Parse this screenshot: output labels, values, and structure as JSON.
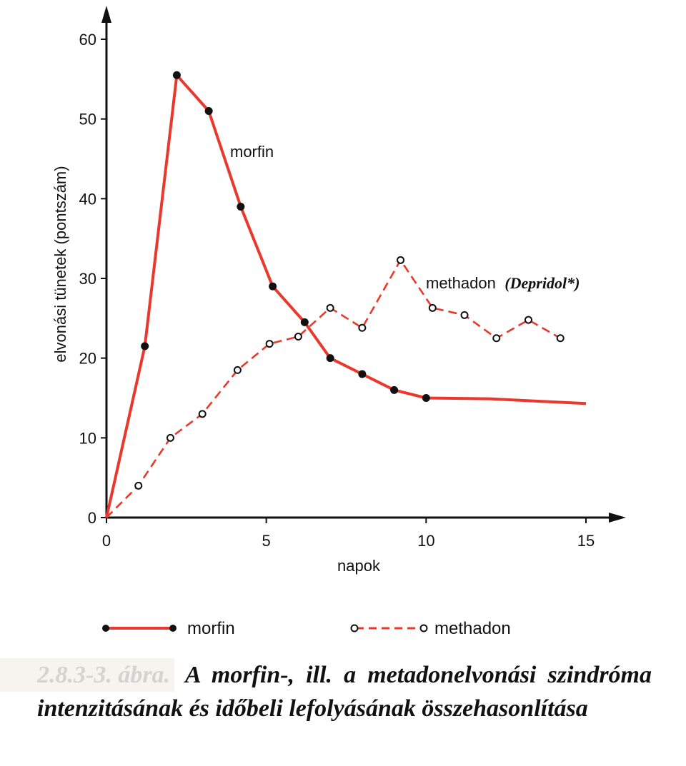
{
  "chart_data": {
    "type": "line",
    "xlabel": "napok",
    "ylabel": "elvonási tünetek (pontszám)",
    "xlim": [
      0,
      15
    ],
    "ylim": [
      0,
      60
    ],
    "x_ticks": [
      0,
      5,
      10,
      15
    ],
    "y_ticks": [
      0,
      10,
      20,
      30,
      40,
      50,
      60
    ],
    "grid": false,
    "legend_position": "bottom",
    "series": [
      {
        "name": "morfin",
        "label": "morfin",
        "style": "solid",
        "marker": "filled-circle",
        "color": "#e8392c",
        "points": [
          [
            0,
            0
          ],
          [
            1.2,
            21.5
          ],
          [
            2.2,
            55.5
          ],
          [
            3.2,
            51
          ],
          [
            4.2,
            39
          ],
          [
            5.2,
            29
          ],
          [
            6.2,
            24.5
          ],
          [
            7.0,
            20
          ],
          [
            8.0,
            18
          ],
          [
            9.0,
            16
          ],
          [
            10.0,
            15
          ]
        ],
        "tail": [
          [
            10.0,
            15.3
          ],
          [
            12.0,
            14.9
          ],
          [
            15.0,
            14.3
          ]
        ]
      },
      {
        "name": "methadon",
        "label": "methadon",
        "label_suffix": "(Depridol*)",
        "style": "dashed",
        "marker": "open-circle",
        "color": "#e8392c",
        "points": [
          [
            0,
            0
          ],
          [
            1.0,
            4
          ],
          [
            2.0,
            10
          ],
          [
            3.0,
            13
          ],
          [
            4.1,
            18.5
          ],
          [
            5.1,
            21.8
          ],
          [
            6.0,
            22.7
          ],
          [
            7.0,
            26.3
          ],
          [
            8.0,
            23.8
          ],
          [
            9.2,
            32.3
          ],
          [
            10.2,
            26.3
          ],
          [
            11.2,
            25.4
          ],
          [
            12.2,
            22.5
          ],
          [
            13.2,
            24.8
          ],
          [
            14.2,
            22.5
          ]
        ]
      }
    ]
  },
  "legend": {
    "morfin": "morfin",
    "methadon": "methadon"
  },
  "caption": {
    "number": "2.8.3-3. ábra.",
    "text": "A morfin-, ill. a metadonelvonási szindróma intenzitásának és időbeli lefolyásának összehasonlítása"
  }
}
